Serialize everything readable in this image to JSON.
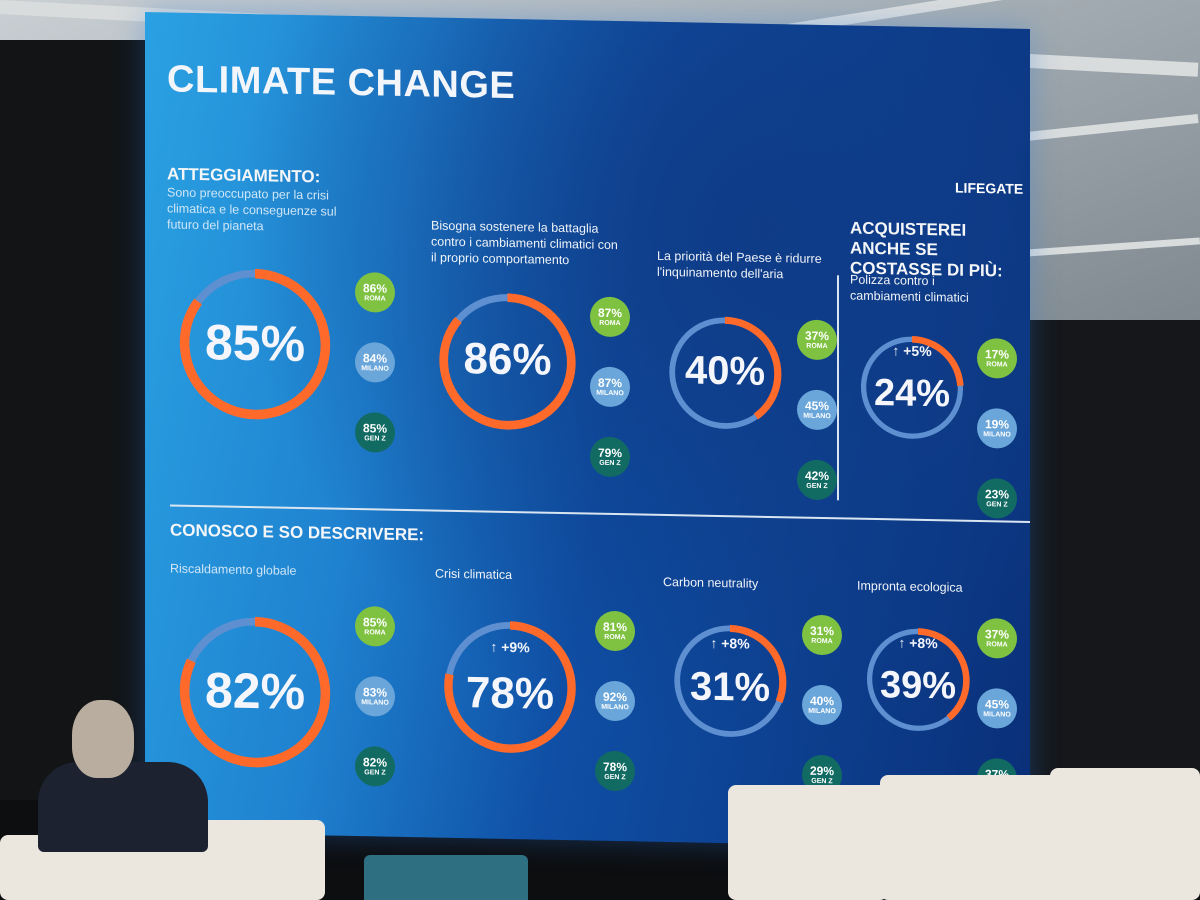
{
  "screen": {
    "title": "CLIMATE CHANGE",
    "brand": "LIFEGATE",
    "sections": {
      "attitude": "ATTEGGIAMENTO:",
      "buy": "ACQUISTEREI ANCHE SE COSTASSE DI PIÙ:",
      "know": "CONOSCO E SO DESCRIVERE:"
    },
    "stats": [
      {
        "question": "Sono preoccupato per la crisi climatica e le conseguenze sul futuro del pianeta",
        "value": "85%",
        "fraction": 0.85,
        "delta": "",
        "roma": "86%",
        "milano": "84%",
        "genz": "85%"
      },
      {
        "question": "Bisogna sostenere la battaglia contro i cambiamenti climatici con il proprio comportamento",
        "value": "86%",
        "fraction": 0.86,
        "delta": "",
        "roma": "87%",
        "milano": "87%",
        "genz": "79%"
      },
      {
        "question": "La priorità del Paese è ridurre l'inquinamento dell'aria",
        "value": "40%",
        "fraction": 0.4,
        "delta": "",
        "roma": "37%",
        "milano": "45%",
        "genz": "42%"
      },
      {
        "question": "Polizza contro i cambiamenti climatici",
        "value": "24%",
        "fraction": 0.24,
        "delta": "↑ +5%",
        "roma": "17%",
        "milano": "19%",
        "genz": "23%"
      },
      {
        "question": "Riscaldamento globale",
        "value": "82%",
        "fraction": 0.82,
        "delta": "",
        "roma": "85%",
        "milano": "83%",
        "genz": "82%"
      },
      {
        "question": "Crisi climatica",
        "value": "78%",
        "fraction": 0.78,
        "delta": "↑ +9%",
        "roma": "81%",
        "milano": "92%",
        "genz": "78%"
      },
      {
        "question": "Carbon neutrality",
        "value": "31%",
        "fraction": 0.31,
        "delta": "↑ +8%",
        "roma": "31%",
        "milano": "40%",
        "genz": "29%"
      },
      {
        "question": "Impronta ecologica",
        "value": "39%",
        "fraction": 0.39,
        "delta": "↑ +8%",
        "roma": "37%",
        "milano": "45%",
        "genz": "37%"
      }
    ],
    "badge_labels": {
      "roma": "ROMA",
      "milano": "MILANO",
      "genz": "GEN Z"
    }
  },
  "colors": {
    "ring_fill": "#ff6a2b",
    "ring_track": "#5e8fd0"
  }
}
